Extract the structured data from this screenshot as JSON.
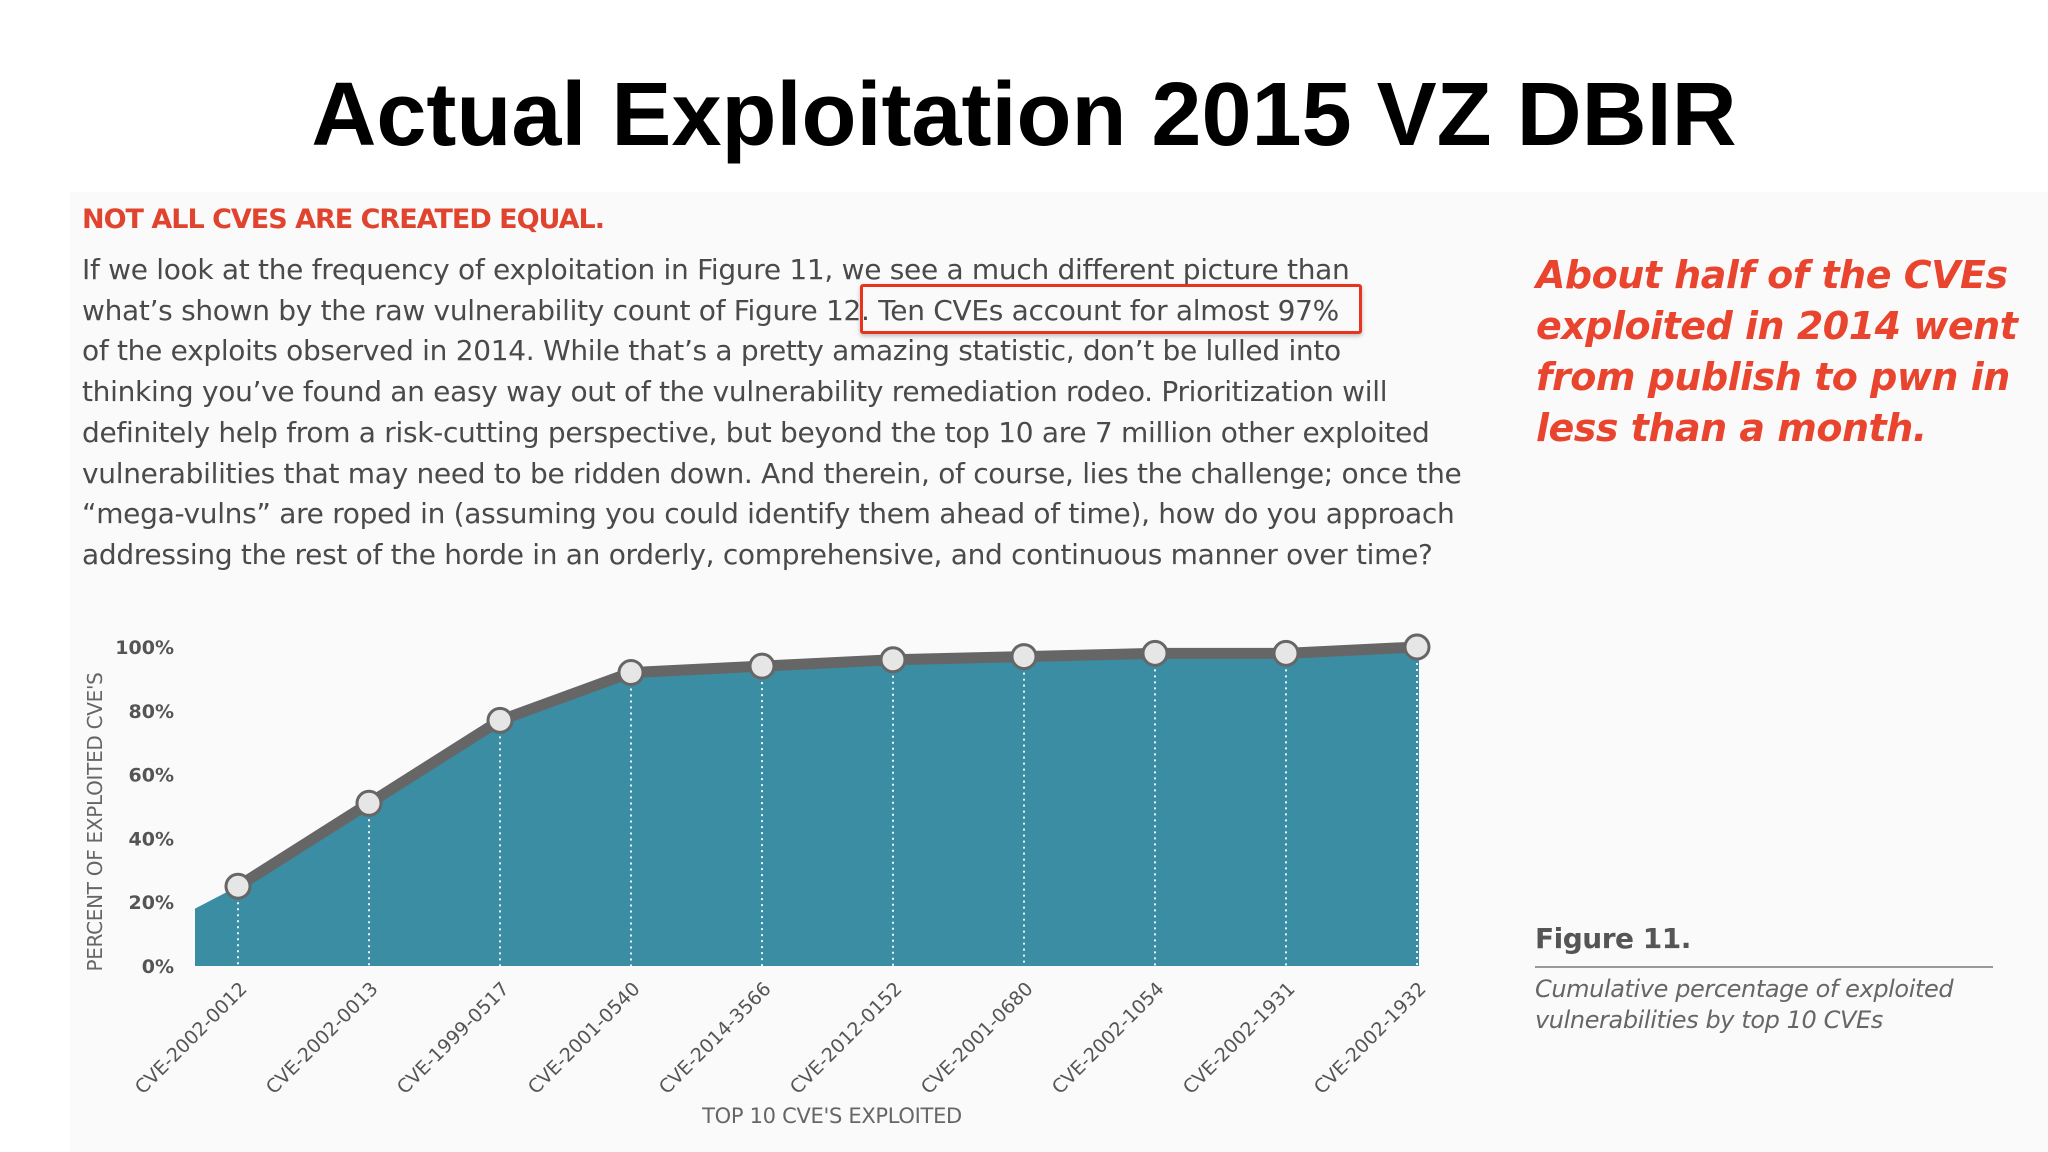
{
  "slide": {
    "title": "Actual Exploitation 2015 VZ DBIR"
  },
  "document": {
    "heading": "NOT ALL CVES ARE CREATED EQUAL.",
    "body_lines": [
      "If we look at the frequency of exploitation in Figure 11, we see a much different picture than",
      "what’s shown by the raw vulnerability count of Figure 12. Ten CVEs account for almost 97%",
      "of the exploits observed in 2014. While that’s a pretty amazing statistic, don’t be lulled into",
      "thinking you’ve found an easy way out of the vulnerability remediation rodeo. Prioritization will",
      "definitely help from a risk-cutting perspective, but beyond the top 10 are 7 million other exploited",
      "vulnerabilities that may need to be ridden down. And therein, of course, lies the challenge; once the",
      "“mega-vulns” are roped in (assuming you could identify them ahead of time), how do you approach",
      "addressing the rest of the horde in an orderly, comprehensive, and continuous manner over time?"
    ],
    "highlighted_phrase": "Ten CVEs account for almost 97%"
  },
  "callout": {
    "lines": [
      "About half of the CVEs",
      "exploited in 2014 went",
      "from publish to pwn in",
      "less than a month."
    ]
  },
  "figure": {
    "label": "Figure 11.",
    "caption_lines": [
      "Cumulative percentage of exploited",
      "vulnerabilities by top 10 CVEs"
    ]
  },
  "colors": {
    "area_fill": "#3a8da3",
    "line": "#666666",
    "marker_fill": "#e6e6e6",
    "accent_red": "#e8442e",
    "highlight_border": "#e8341c"
  },
  "chart_data": {
    "type": "area",
    "xlabel": "TOP 10 CVE'S EXPLOITED",
    "ylabel": "PERCENT OF EXPLOITED CVE'S",
    "ylim": [
      0,
      100
    ],
    "y_ticks": [
      "0%",
      "20%",
      "40%",
      "60%",
      "80%",
      "100%"
    ],
    "y_tick_values": [
      0,
      20,
      40,
      60,
      80,
      100
    ],
    "categories": [
      "CVE-2002-0012",
      "CVE-2002-0013",
      "CVE-1999-0517",
      "CVE-2001-0540",
      "CVE-2014-3566",
      "CVE-2012-0152",
      "CVE-2001-0680",
      "CVE-2002-1054",
      "CVE-2002-1931",
      "CVE-2002-1932"
    ],
    "values": [
      25,
      51,
      77,
      92,
      94,
      96,
      97,
      98,
      98,
      100
    ],
    "area_start_value": 18,
    "grid": false,
    "legend": "none"
  }
}
